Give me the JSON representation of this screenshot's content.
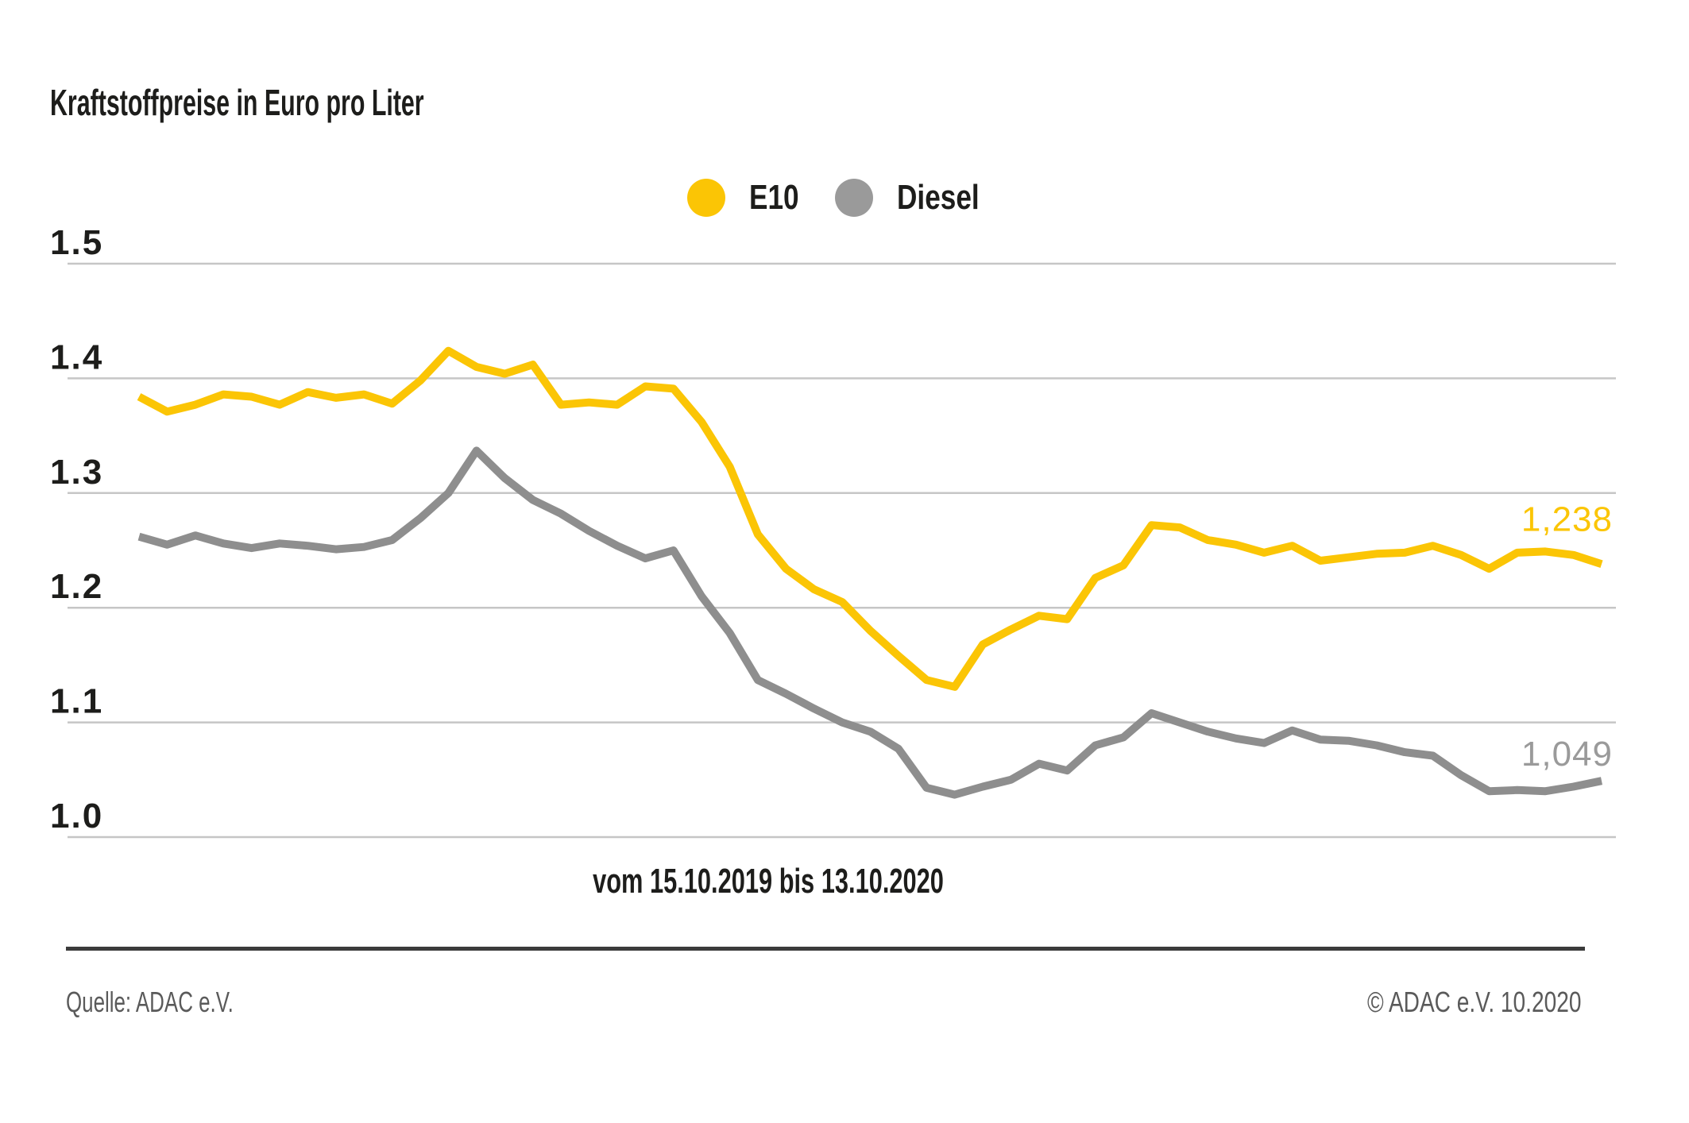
{
  "title": "Kraftstoffpreise in Euro pro Liter",
  "x_axis_label": "vom 15.10.2019 bis 13.10.2020",
  "footer": {
    "source": "Quelle: ADAC e.V.",
    "copyright": "© ADAC e.V. 10.2020"
  },
  "colors": {
    "background": "#FFFFFF",
    "text": "#1D1D1B",
    "gridline": "#C6C6C6",
    "footer_rule": "#3B3B3B",
    "footer_text": "#5A5A5A",
    "e10_yellow": "#FBC505",
    "diesel_gray": "#8E8E8E"
  },
  "chart_data": {
    "type": "line",
    "title": "Kraftstoffpreise in Euro pro Liter",
    "xlabel": "vom 15.10.2019 bis 13.10.2020",
    "ylabel": "Euro pro Liter",
    "x_range": {
      "from": "15.10.2019",
      "to": "13.10.2020"
    },
    "ylim": [
      1.0,
      1.5
    ],
    "yticks": [
      1.5,
      1.4,
      1.3,
      1.2,
      1.1,
      1.0
    ],
    "grid": "horizontal",
    "legend_position": "top-center",
    "series": [
      {
        "name": "E10",
        "color": "#FBC505",
        "legend_color": "#FBC505",
        "label_color": "#FBC505",
        "end_label": "1,238",
        "end_value": 1.238,
        "values": [
          1.384,
          1.371,
          1.377,
          1.386,
          1.384,
          1.377,
          1.388,
          1.383,
          1.386,
          1.378,
          1.398,
          1.424,
          1.41,
          1.404,
          1.412,
          1.377,
          1.379,
          1.377,
          1.393,
          1.391,
          1.362,
          1.323,
          1.264,
          1.234,
          1.216,
          1.205,
          1.18,
          1.158,
          1.137,
          1.131,
          1.168,
          1.181,
          1.193,
          1.19,
          1.226,
          1.237,
          1.272,
          1.27,
          1.259,
          1.255,
          1.248,
          1.254,
          1.241,
          1.244,
          1.247,
          1.248,
          1.254,
          1.246,
          1.234,
          1.248,
          1.249,
          1.246,
          1.238
        ]
      },
      {
        "name": "Diesel",
        "color": "#8E8E8E",
        "legend_color": "#9A9A9A",
        "label_color": "#9A9A9A",
        "end_label": "1,049",
        "end_value": 1.049,
        "values": [
          1.262,
          1.255,
          1.263,
          1.256,
          1.252,
          1.256,
          1.254,
          1.251,
          1.253,
          1.259,
          1.278,
          1.3,
          1.337,
          1.313,
          1.294,
          1.282,
          1.267,
          1.254,
          1.243,
          1.25,
          1.21,
          1.178,
          1.137,
          1.125,
          1.112,
          1.1,
          1.092,
          1.077,
          1.043,
          1.037,
          1.044,
          1.05,
          1.064,
          1.058,
          1.08,
          1.087,
          1.108,
          1.1,
          1.092,
          1.086,
          1.082,
          1.093,
          1.085,
          1.084,
          1.08,
          1.074,
          1.071,
          1.054,
          1.04,
          1.041,
          1.04,
          1.044,
          1.049
        ]
      }
    ]
  }
}
